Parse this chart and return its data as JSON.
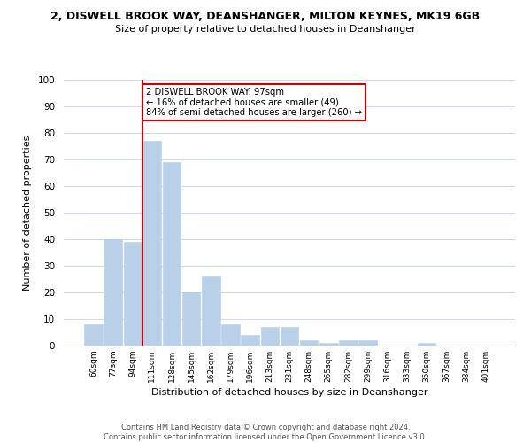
{
  "title": "2, DISWELL BROOK WAY, DEANSHANGER, MILTON KEYNES, MK19 6GB",
  "subtitle": "Size of property relative to detached houses in Deanshanger",
  "xlabel": "Distribution of detached houses by size in Deanshanger",
  "ylabel": "Number of detached properties",
  "bar_labels": [
    "60sqm",
    "77sqm",
    "94sqm",
    "111sqm",
    "128sqm",
    "145sqm",
    "162sqm",
    "179sqm",
    "196sqm",
    "213sqm",
    "231sqm",
    "248sqm",
    "265sqm",
    "282sqm",
    "299sqm",
    "316sqm",
    "333sqm",
    "350sqm",
    "367sqm",
    "384sqm",
    "401sqm"
  ],
  "bar_values": [
    8,
    40,
    39,
    77,
    69,
    20,
    26,
    8,
    4,
    7,
    7,
    2,
    1,
    2,
    2,
    0,
    0,
    1,
    0,
    0,
    0
  ],
  "bar_color": "#b8d0e8",
  "bar_edge_color": "#b8d0e8",
  "annotation_title": "2 DISWELL BROOK WAY: 97sqm",
  "annotation_line1": "← 16% of detached houses are smaller (49)",
  "annotation_line2": "84% of semi-detached houses are larger (260) →",
  "annotation_box_color": "#ffffff",
  "annotation_box_edge": "#cc0000",
  "ref_line_color": "#cc0000",
  "ylim": [
    0,
    100
  ],
  "yticks": [
    0,
    10,
    20,
    30,
    40,
    50,
    60,
    70,
    80,
    90,
    100
  ],
  "footer_line1": "Contains HM Land Registry data © Crown copyright and database right 2024.",
  "footer_line2": "Contains public sector information licensed under the Open Government Licence v3.0.",
  "bg_color": "#ffffff",
  "grid_color": "#d0daea"
}
